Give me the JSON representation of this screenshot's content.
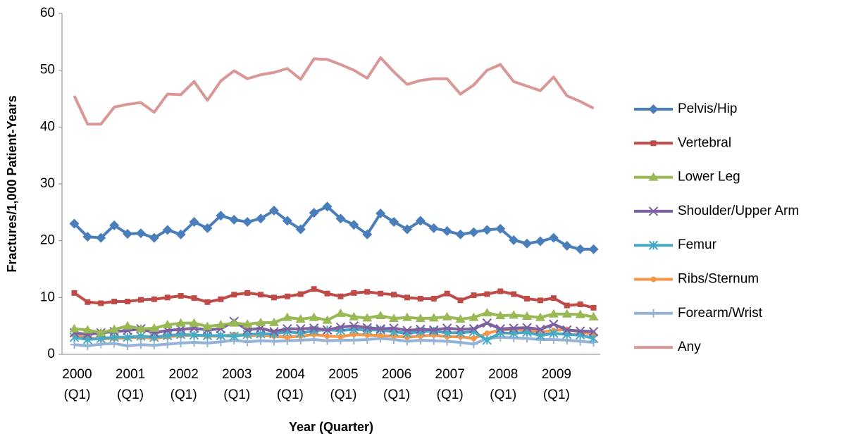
{
  "chart_data": {
    "type": "line",
    "y_label": "Fractures/1,000 Patient-Years",
    "x_label": "Year (Quarter)",
    "categories": [
      "2000 (Q1)",
      null,
      null,
      null,
      "2001 (Q1)",
      null,
      null,
      null,
      "2002 (Q1)",
      null,
      null,
      null,
      "2003 (Q1)",
      null,
      null,
      null,
      "2004 (Q1)",
      null,
      null,
      null,
      "2005 (Q1)",
      null,
      null,
      null,
      "2006 (Q1)",
      null,
      null,
      null,
      "2007 (Q1)",
      null,
      null,
      null,
      "2008 (Q1)",
      null,
      null,
      null,
      "2009 (Q1)",
      null,
      null,
      null
    ],
    "ylim": [
      0,
      60
    ],
    "yticks": [
      0,
      10,
      20,
      30,
      40,
      50,
      60
    ],
    "grid": false,
    "legend": "right",
    "series": [
      {
        "name": "Pelvis/Hip",
        "color": "#4a7ebb",
        "marker": "diamond",
        "values": [
          23,
          20.7,
          20.5,
          22.7,
          21.2,
          21.3,
          20.5,
          21.9,
          21.1,
          23.3,
          22.2,
          24.4,
          23.7,
          23.3,
          23.9,
          25.3,
          23.5,
          22,
          24.9,
          26,
          23.9,
          22.8,
          21.1,
          24.8,
          23.3,
          22,
          23.5,
          22.2,
          21.7,
          21.1,
          21.5,
          21.9,
          22.1,
          20.1,
          19.5,
          19.9,
          20.5,
          19.1,
          18.5,
          18.5
        ]
      },
      {
        "name": "Vertebral",
        "color": "#be4b48",
        "marker": "square",
        "values": [
          10.8,
          9.2,
          9,
          9.3,
          9.3,
          9.6,
          9.7,
          10,
          10.3,
          9.9,
          9.2,
          9.7,
          10.5,
          10.8,
          10.5,
          10,
          10.2,
          10.6,
          11.5,
          10.7,
          10.2,
          10.8,
          11,
          10.7,
          10.5,
          10,
          9.8,
          9.8,
          10.7,
          9.5,
          10.4,
          10.6,
          11.1,
          10.6,
          9.8,
          9.5,
          9.9,
          8.6,
          8.8,
          8.2
        ]
      },
      {
        "name": "Lower Leg",
        "color": "#98b954",
        "marker": "triangle",
        "values": [
          4.5,
          4.3,
          3.8,
          4.4,
          5,
          4.5,
          4.6,
          5.2,
          5.5,
          5.5,
          4.9,
          5.2,
          5.5,
          5.3,
          5.6,
          5.6,
          6.5,
          6.2,
          6.5,
          6,
          7.2,
          6.6,
          6.4,
          6.8,
          6.3,
          6.5,
          6.3,
          6.4,
          6.6,
          6.2,
          6.5,
          7.3,
          6.8,
          6.9,
          6.7,
          6.5,
          7.1,
          7.1,
          7,
          6.6
        ]
      },
      {
        "name": "Shoulder/Upper Arm",
        "color": "#7d60a0",
        "marker": "x",
        "values": [
          3.8,
          3.5,
          3.8,
          4,
          4.2,
          4.5,
          3.8,
          4.2,
          4.4,
          4.6,
          4.3,
          4.5,
          5.8,
          4.3,
          4.6,
          4,
          4.5,
          4.5,
          4.6,
          4.3,
          4.8,
          5,
          4.7,
          4.5,
          4.6,
          4.2,
          4.4,
          4.3,
          4.6,
          4.4,
          4.5,
          5.5,
          4.5,
          4.6,
          4.7,
          4.4,
          5.3,
          4.3,
          4.1,
          4
        ]
      },
      {
        "name": "Femur",
        "color": "#46aac5",
        "marker": "asterisk",
        "values": [
          3,
          2.6,
          2.8,
          3,
          3,
          3.2,
          3,
          3.3,
          3.5,
          3.4,
          3.3,
          3.3,
          3.2,
          3.5,
          3.6,
          3.6,
          4,
          3.7,
          4.2,
          4.3,
          4.2,
          4.4,
          4.3,
          4.3,
          4,
          3.7,
          4,
          4.1,
          3.8,
          3.8,
          4,
          2.5,
          3.8,
          3.7,
          3.9,
          3.3,
          3.7,
          3.5,
          3.4,
          2.8
        ]
      },
      {
        "name": "Ribs/Sternum",
        "color": "#f79646",
        "marker": "circle",
        "values": [
          3.3,
          2.9,
          2.7,
          2.8,
          2.9,
          3,
          2.8,
          3.1,
          3.3,
          3.4,
          3.2,
          3.2,
          3.5,
          3.3,
          3.4,
          3.2,
          3,
          3.2,
          3.5,
          3.2,
          3.1,
          3.5,
          3.4,
          3.3,
          3.2,
          3,
          3.2,
          3.4,
          3.1,
          3.1,
          2.8,
          3.7,
          4.3,
          4.4,
          4.3,
          3.9,
          4.2,
          4.4,
          3.9,
          3.6
        ]
      },
      {
        "name": "Forearm/Wrist",
        "color": "#95b3d7",
        "marker": "plus",
        "values": [
          1.7,
          1.5,
          1.8,
          1.9,
          1.5,
          1.7,
          1.6,
          1.8,
          2,
          2.1,
          2,
          2.2,
          2.5,
          2.2,
          2.4,
          2.3,
          2.4,
          2.5,
          2.6,
          2.4,
          2.5,
          2.5,
          2.6,
          2.8,
          2.6,
          2.3,
          2.5,
          2.4,
          2.3,
          2.1,
          1.8,
          2.8,
          3,
          2.9,
          2.8,
          2.6,
          2.6,
          2.5,
          2.3,
          2.1
        ]
      },
      {
        "name": "Any",
        "color": "#d99795",
        "marker": "none",
        "values": [
          45.5,
          40.5,
          40.5,
          43.5,
          44,
          44.3,
          42.6,
          45.8,
          45.7,
          48,
          44.7,
          48.1,
          49.9,
          48.5,
          49.2,
          49.6,
          50.3,
          48.4,
          52,
          51.9,
          51,
          50,
          48.6,
          52.2,
          49.7,
          47.5,
          48.2,
          48.5,
          48.5,
          45.8,
          47.4,
          50,
          51,
          48,
          47.2,
          46.4,
          48.8,
          45.5,
          44.5,
          43.3
        ]
      }
    ]
  }
}
